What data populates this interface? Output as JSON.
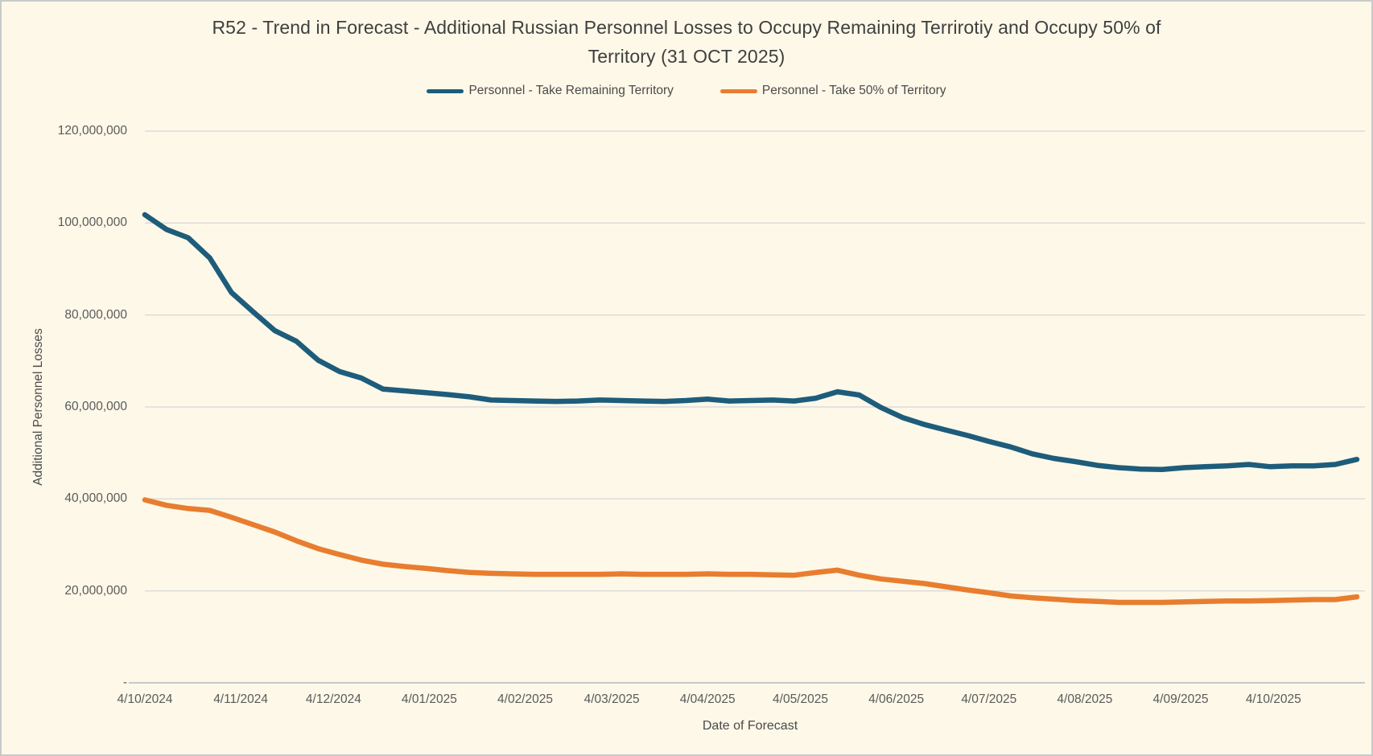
{
  "colors": {
    "background": "#FDF8E8",
    "gridline": "#DADADA",
    "axis_line": "#C8C8C8",
    "title_text": "#3F3F3F",
    "axis_text": "#5A5A5A",
    "series_blue": "#1E5C7B",
    "series_orange": "#E87D2F",
    "border": "#C9C9C9"
  },
  "chart_data": {
    "type": "line",
    "title": "R52 - Trend in Forecast - Additional Russian Personnel Losses to Occupy Remaining Terrirotiy and Occupy 50% of Territory  (31 OCT 2025)",
    "xlabel": "Date of Forecast",
    "ylabel": "Additional Personnel Losses",
    "legend_position": "top",
    "grid": true,
    "y_min": 0,
    "y_max": 120000000,
    "y_tick_interval": 20000000,
    "y_tick_labels": [
      "120,000,000",
      "100,000,000",
      "80,000,000",
      "60,000,000",
      "40,000,000",
      "20,000,000",
      "-"
    ],
    "x_tick_labels": [
      "4/10/2024",
      "4/11/2024",
      "4/12/2024",
      "4/01/2025",
      "4/02/2025",
      "4/03/2025",
      "4/04/2025",
      "4/05/2025",
      "4/06/2025",
      "4/07/2025",
      "4/08/2025",
      "4/09/2025",
      "4/10/2025"
    ],
    "x_range": [
      "4/10/2024",
      "31/10/2025"
    ],
    "x": [
      "4/10/2024",
      "11/10/2024",
      "18/10/2024",
      "25/10/2024",
      "1/11/2024",
      "8/11/2024",
      "15/11/2024",
      "22/11/2024",
      "29/11/2024",
      "6/12/2024",
      "13/12/2024",
      "20/12/2024",
      "27/12/2024",
      "3/01/2025",
      "10/01/2025",
      "17/01/2025",
      "24/01/2025",
      "31/01/2025",
      "7/02/2025",
      "14/02/2025",
      "21/02/2025",
      "28/02/2025",
      "7/03/2025",
      "14/03/2025",
      "21/03/2025",
      "28/03/2025",
      "4/04/2025",
      "11/04/2025",
      "18/04/2025",
      "25/04/2025",
      "2/05/2025",
      "9/05/2025",
      "16/05/2025",
      "23/05/2025",
      "30/05/2025",
      "6/06/2025",
      "13/06/2025",
      "20/06/2025",
      "27/06/2025",
      "4/07/2025",
      "11/07/2025",
      "18/07/2025",
      "25/07/2025",
      "1/08/2025",
      "8/08/2025",
      "15/08/2025",
      "22/08/2025",
      "29/08/2025",
      "5/09/2025",
      "12/09/2025",
      "19/09/2025",
      "26/09/2025",
      "3/10/2025",
      "10/10/2025",
      "17/10/2025",
      "24/10/2025",
      "31/10/2025"
    ],
    "series": [
      {
        "name": "Personnel - Take Remaining Territory",
        "color": "#1E5C7B",
        "values": [
          101800000,
          98600000,
          96800000,
          92400000,
          84900000,
          80700000,
          76600000,
          74300000,
          70200000,
          67700000,
          66300000,
          63900000,
          63500000,
          63100000,
          62700000,
          62200000,
          61500000,
          61400000,
          61300000,
          61200000,
          61300000,
          61500000,
          61400000,
          61300000,
          61200000,
          61400000,
          61700000,
          61300000,
          61400000,
          61500000,
          61300000,
          61900000,
          63300000,
          62600000,
          59900000,
          57700000,
          56200000,
          55000000,
          53800000,
          52500000,
          51300000,
          49800000,
          48800000,
          48100000,
          47300000,
          46800000,
          46500000,
          46400000,
          46800000,
          47000000,
          47200000,
          47500000,
          47000000,
          47200000,
          47200000,
          47500000,
          48600000
        ]
      },
      {
        "name": "Personnel - Take 50% of Territory",
        "color": "#E87D2F",
        "values": [
          39800000,
          38600000,
          37900000,
          37500000,
          36000000,
          34400000,
          32800000,
          30900000,
          29200000,
          27900000,
          26700000,
          25800000,
          25300000,
          24900000,
          24400000,
          24000000,
          23800000,
          23700000,
          23600000,
          23600000,
          23600000,
          23600000,
          23700000,
          23600000,
          23600000,
          23600000,
          23700000,
          23600000,
          23600000,
          23500000,
          23400000,
          24000000,
          24500000,
          23400000,
          22600000,
          22100000,
          21600000,
          20900000,
          20200000,
          19600000,
          18900000,
          18500000,
          18200000,
          17900000,
          17700000,
          17500000,
          17500000,
          17500000,
          17600000,
          17700000,
          17800000,
          17800000,
          17900000,
          18000000,
          18100000,
          18100000,
          18700000
        ]
      }
    ]
  }
}
